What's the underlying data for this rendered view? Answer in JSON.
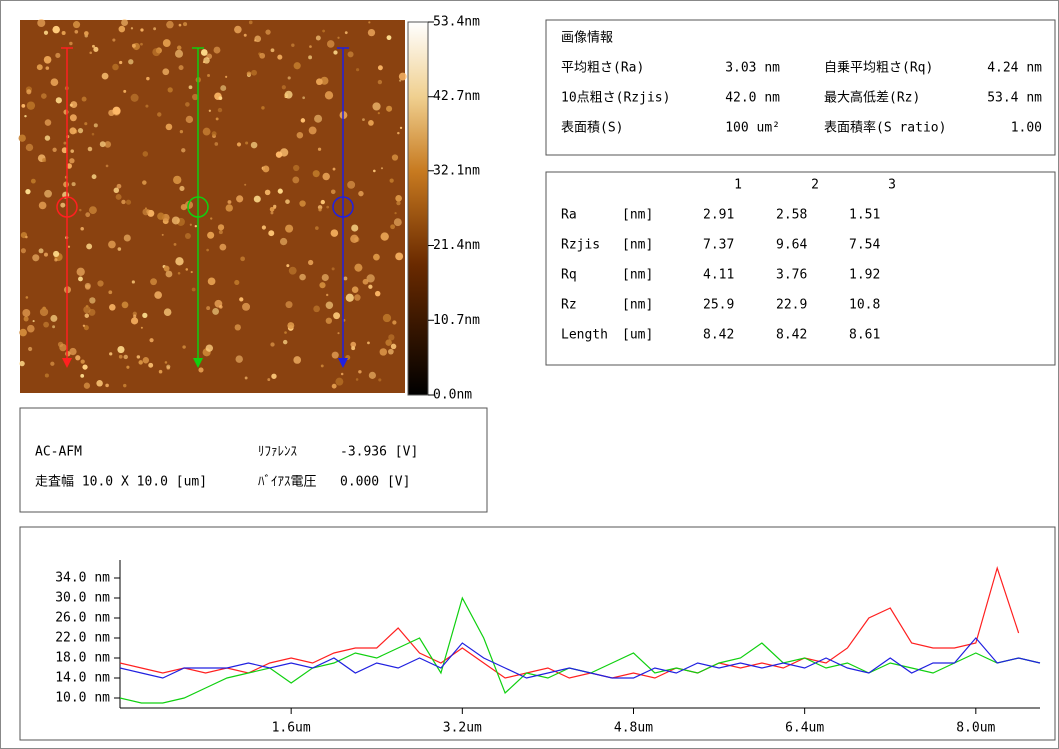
{
  "colorbar": {
    "clim": [
      0,
      53.4
    ],
    "ticks": [
      {
        "value": 53.4,
        "label": "53.4nm"
      },
      {
        "value": 42.7,
        "label": "42.7nm"
      },
      {
        "value": 32.1,
        "label": "32.1nm"
      },
      {
        "value": 21.4,
        "label": "21.4nm"
      },
      {
        "value": 10.7,
        "label": "10.7nm"
      },
      {
        "value": 0,
        "label": "0.0nm"
      }
    ]
  },
  "info": {
    "title": "画像情報",
    "rows": [
      [
        "平均粗さ(Ra)",
        "3.03 nm",
        "自乗平均粗さ(Rq)",
        "4.24 nm"
      ],
      [
        "10点粗さ(Rzjis)",
        "42.0 nm",
        "最大高低差(Rz)",
        "53.4 nm"
      ],
      [
        "表面積(S)",
        "100 um²",
        "表面積率(S ratio)",
        "1.00"
      ]
    ]
  },
  "table": {
    "columns": [
      "1",
      "2",
      "3"
    ],
    "rows": [
      {
        "name": "Ra",
        "unit": "[nm]",
        "values": [
          "2.91",
          "2.58",
          "1.51"
        ]
      },
      {
        "name": "Rzjis",
        "unit": "[nm]",
        "values": [
          "7.37",
          "9.64",
          "7.54"
        ]
      },
      {
        "name": "Rq",
        "unit": "[nm]",
        "values": [
          "4.11",
          "3.76",
          "1.92"
        ]
      },
      {
        "name": "Rz",
        "unit": "[nm]",
        "values": [
          "25.9",
          "22.9",
          "10.8"
        ]
      },
      {
        "name": "Length",
        "unit": "[um]",
        "values": [
          "8.42",
          "8.42",
          "8.61"
        ]
      }
    ]
  },
  "conditions": {
    "mode": "AC-AFM",
    "scan": "走査幅 10.0 X 10.0 [um]",
    "reference_label": "ﾘﾌｧﾚﾝｽ",
    "reference_value": "-3.936 [V]",
    "bias_label": "ﾊﾞｲｱｽ電圧",
    "bias_value": "0.000 [V]"
  },
  "chart_data": {
    "type": "line",
    "x": [
      0,
      0.2,
      0.4,
      0.6,
      0.8,
      1.0,
      1.2,
      1.4,
      1.6,
      1.8,
      2.0,
      2.2,
      2.4,
      2.6,
      2.8,
      3.0,
      3.2,
      3.4,
      3.6,
      3.8,
      4.0,
      4.2,
      4.4,
      4.6,
      4.8,
      5.0,
      5.2,
      5.4,
      5.6,
      5.8,
      6.0,
      6.2,
      6.4,
      6.6,
      6.8,
      7.0,
      7.2,
      7.4,
      7.6,
      7.8,
      8.0,
      8.2,
      8.4,
      8.6
    ],
    "series": [
      {
        "name": "1",
        "color": "#ff2020",
        "values": [
          17,
          16,
          15,
          16,
          15,
          16,
          15,
          17,
          18,
          17,
          19,
          20,
          20,
          24,
          19,
          17,
          20,
          17,
          14,
          15,
          16,
          14,
          15,
          14,
          15,
          14,
          16,
          15,
          17,
          16,
          17,
          16,
          18,
          17,
          20,
          26,
          28,
          21,
          20,
          20,
          21,
          36,
          23,
          null
        ]
      },
      {
        "name": "2",
        "color": "#10d010",
        "values": [
          10,
          9,
          9,
          10,
          12,
          14,
          15,
          16,
          13,
          16,
          17,
          19,
          18,
          20,
          22,
          15,
          30,
          22,
          11,
          15,
          14,
          16,
          15,
          17,
          19,
          15,
          16,
          15,
          17,
          18,
          21,
          17,
          18,
          16,
          17,
          15,
          17,
          16,
          15,
          17,
          19,
          17,
          18,
          17
        ]
      },
      {
        "name": "3",
        "color": "#2020e0",
        "values": [
          16,
          15,
          14,
          16,
          16,
          16,
          17,
          16,
          17,
          16,
          18,
          15,
          17,
          16,
          18,
          16,
          21,
          18,
          16,
          14,
          15,
          16,
          15,
          14,
          14,
          16,
          15,
          17,
          16,
          17,
          16,
          17,
          16,
          18,
          16,
          15,
          18,
          15,
          17,
          17,
          22,
          17,
          18,
          17
        ]
      }
    ],
    "xlim": [
      0,
      8.6
    ],
    "ylim": [
      8,
      38
    ],
    "xticks": [
      {
        "value": 1.6,
        "label": "1.6um"
      },
      {
        "value": 3.2,
        "label": "3.2um"
      },
      {
        "value": 4.8,
        "label": "4.8um"
      },
      {
        "value": 6.4,
        "label": "6.4um"
      },
      {
        "value": 8.0,
        "label": "8.0um"
      }
    ],
    "yticks": [
      {
        "value": 10,
        "label": "10.0 nm"
      },
      {
        "value": 14,
        "label": "14.0 nm"
      },
      {
        "value": 18,
        "label": "18.0 nm"
      },
      {
        "value": 22,
        "label": "22.0 nm"
      },
      {
        "value": 26,
        "label": "26.0 nm"
      },
      {
        "value": 30,
        "label": "30.0 nm"
      },
      {
        "value": 34,
        "label": "34.0 nm"
      }
    ]
  }
}
